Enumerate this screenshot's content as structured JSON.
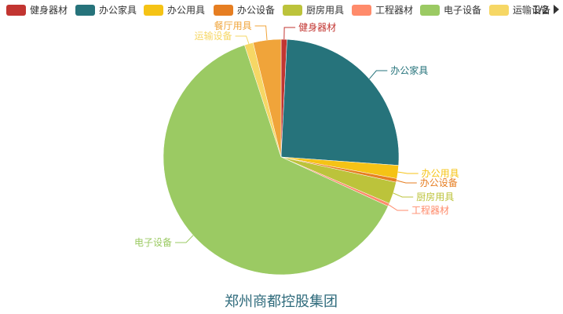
{
  "chart_data": {
    "type": "pie",
    "title": "郑州商都控股集团",
    "legend_position": "top",
    "legend_visible_count": 8,
    "legend_page": "1/2",
    "slices": [
      {
        "name": "健身器材",
        "value": 0.8,
        "color": "#c23531"
      },
      {
        "name": "办公家具",
        "value": 25.2,
        "color": "#26737b"
      },
      {
        "name": "办公用具",
        "value": 1.8,
        "color": "#f5c315"
      },
      {
        "name": "办公设备",
        "value": 0.5,
        "color": "#e67e22"
      },
      {
        "name": "厨房用具",
        "value": 3.0,
        "color": "#bcc33b"
      },
      {
        "name": "工程器材",
        "value": 0.4,
        "color": "#ff8b6b"
      },
      {
        "name": "电子设备",
        "value": 62.8,
        "color": "#9bca63"
      },
      {
        "name": "运输设备",
        "value": 1.2,
        "color": "#f6d765"
      },
      {
        "name": "餐厅用具",
        "value": 3.8,
        "color": "#f0a43a"
      }
    ]
  }
}
